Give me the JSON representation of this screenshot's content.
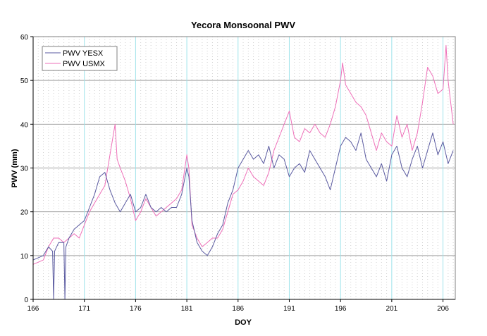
{
  "chart_data": {
    "type": "line",
    "title": "Yecora Monsoonal PWV",
    "xlabel": "DOY",
    "ylabel": "PWV (mm)",
    "xlim": [
      166,
      207.2
    ],
    "ylim": [
      0,
      60
    ],
    "xticks": [
      166,
      171,
      176,
      181,
      186,
      191,
      196,
      201,
      206
    ],
    "yticks": [
      0,
      10,
      20,
      30,
      40,
      50,
      60
    ],
    "minor_x_step": 0.5,
    "grid": true,
    "legend": {
      "position": "top-left",
      "entries": [
        "PWV YESX",
        "PWV USMX"
      ]
    },
    "series": [
      {
        "name": "PWV YESX",
        "color": "#5a5aa0",
        "x": [
          166.0,
          166.5,
          167.0,
          167.5,
          167.9,
          168.0,
          168.1,
          168.5,
          169.0,
          169.1,
          169.2,
          169.5,
          170.0,
          170.5,
          171.0,
          171.5,
          172.0,
          172.5,
          173.0,
          173.5,
          174.0,
          174.5,
          175.0,
          175.5,
          176.0,
          176.5,
          177.0,
          177.5,
          178.0,
          178.5,
          179.0,
          179.5,
          180.0,
          180.5,
          181.0,
          181.2,
          181.5,
          182.0,
          182.5,
          183.0,
          183.5,
          184.0,
          184.5,
          185.0,
          185.5,
          186.0,
          186.5,
          187.0,
          187.5,
          188.0,
          188.5,
          189.0,
          189.5,
          190.0,
          190.5,
          191.0,
          191.5,
          192.0,
          192.5,
          193.0,
          193.5,
          194.0,
          194.5,
          195.0,
          195.5,
          196.0,
          196.5,
          197.0,
          197.5,
          198.0,
          198.5,
          199.0,
          199.5,
          200.0,
          200.5,
          201.0,
          201.5,
          202.0,
          202.5,
          203.0,
          203.5,
          204.0,
          204.5,
          205.0,
          205.5,
          206.0,
          206.5,
          207.0
        ],
        "values": [
          9,
          9.5,
          10,
          12,
          11,
          0,
          11,
          13,
          13,
          0,
          12,
          14,
          16,
          17,
          18,
          21,
          24,
          28,
          29,
          25,
          22,
          20,
          22,
          24,
          20,
          21,
          24,
          21,
          20,
          21,
          20,
          21,
          21,
          24,
          30,
          28,
          18,
          13,
          11,
          10,
          12,
          15,
          17,
          22,
          25,
          30,
          32,
          34,
          32,
          33,
          31,
          35,
          30,
          33,
          32,
          28,
          30,
          31,
          29,
          34,
          32,
          30,
          28,
          25,
          30,
          35,
          37,
          36,
          34,
          38,
          32,
          30,
          28,
          31,
          27,
          33,
          35,
          30,
          28,
          32,
          35,
          30,
          34,
          38,
          33,
          36,
          31,
          34
        ]
      },
      {
        "name": "PWV USMX",
        "color": "#ee6fb8",
        "x": [
          166.0,
          166.5,
          167.0,
          167.5,
          168.0,
          168.5,
          169.0,
          169.5,
          170.0,
          170.5,
          171.0,
          171.5,
          172.0,
          172.5,
          173.0,
          173.5,
          174.0,
          174.2,
          174.5,
          175.0,
          175.5,
          176.0,
          176.5,
          177.0,
          177.5,
          178.0,
          178.5,
          179.0,
          179.5,
          180.0,
          180.5,
          181.0,
          181.2,
          181.5,
          182.0,
          182.5,
          183.0,
          183.5,
          184.0,
          184.5,
          185.0,
          185.5,
          186.0,
          186.5,
          187.0,
          187.5,
          188.0,
          188.5,
          189.0,
          189.5,
          190.0,
          190.5,
          191.0,
          191.5,
          192.0,
          192.5,
          193.0,
          193.5,
          194.0,
          194.5,
          195.0,
          195.5,
          196.0,
          196.2,
          196.5,
          197.0,
          197.5,
          198.0,
          198.5,
          199.0,
          199.5,
          200.0,
          200.5,
          201.0,
          201.5,
          202.0,
          202.5,
          203.0,
          203.5,
          204.0,
          204.5,
          205.0,
          205.5,
          206.0,
          206.3,
          206.5,
          207.0
        ],
        "values": [
          8,
          8.5,
          9,
          12,
          14,
          14,
          13,
          14,
          15,
          14,
          17,
          20,
          22,
          24,
          26,
          33,
          40,
          32,
          30,
          27,
          23,
          18,
          20,
          23,
          21,
          19,
          20,
          21,
          22,
          23,
          25,
          33,
          30,
          17,
          14,
          12,
          13,
          14,
          14,
          16,
          20,
          24,
          25,
          27,
          30,
          28,
          27,
          26,
          29,
          34,
          37,
          40,
          43,
          37,
          36,
          39,
          38,
          40,
          38,
          37,
          40,
          44,
          50,
          54,
          49,
          47,
          45,
          44,
          42,
          38,
          34,
          38,
          36,
          35,
          42,
          37,
          40,
          34,
          38,
          45,
          53,
          51,
          47,
          48,
          58,
          50,
          40
        ]
      }
    ]
  }
}
